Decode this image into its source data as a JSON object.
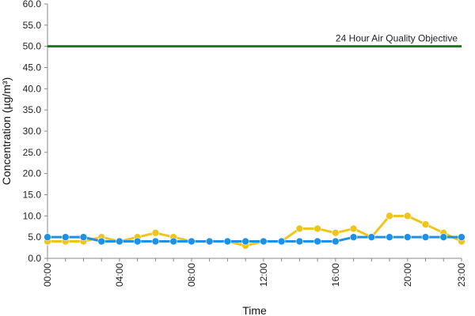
{
  "chart_data": {
    "type": "line",
    "title": "",
    "xlabel": "Time",
    "ylabel": "Concentration (µg/m³)",
    "ylim": [
      0,
      60
    ],
    "yticks": [
      "0.0",
      "5.0",
      "10.0",
      "15.0",
      "20.0",
      "25.0",
      "30.0",
      "35.0",
      "40.0",
      "45.0",
      "50.0",
      "55.0",
      "60.0"
    ],
    "ytick_values": [
      0,
      5,
      10,
      15,
      20,
      25,
      30,
      35,
      40,
      45,
      50,
      55,
      60
    ],
    "categories": [
      "00:00",
      "01:00",
      "02:00",
      "03:00",
      "04:00",
      "05:00",
      "06:00",
      "07:00",
      "08:00",
      "09:00",
      "10:00",
      "11:00",
      "12:00",
      "13:00",
      "14:00",
      "15:00",
      "16:00",
      "17:00",
      "18:00",
      "19:00",
      "20:00",
      "21:00",
      "22:00",
      "23:00"
    ],
    "xtick_labels": [
      "00:00",
      "04:00",
      "08:00",
      "12:00",
      "16:00",
      "20:00",
      "23:00"
    ],
    "xtick_indices": [
      0,
      4,
      8,
      12,
      16,
      20,
      23
    ],
    "grid": false,
    "legend": "none",
    "reference_line": {
      "label": "24 Hour Air Quality Objective",
      "value": 50,
      "color": "#1a7a1a"
    },
    "series": [
      {
        "color": "#f0c419",
        "values": [
          4,
          4,
          4,
          5,
          4,
          5,
          6,
          5,
          4,
          4,
          4,
          3,
          4,
          4,
          7,
          7,
          6,
          7,
          5,
          10,
          10,
          8,
          6,
          4
        ]
      },
      {
        "color": "#1e90e6",
        "values": [
          5,
          5,
          5,
          4,
          4,
          4,
          4,
          4,
          4,
          4,
          4,
          4,
          4,
          4,
          4,
          4,
          4,
          5,
          5,
          5,
          5,
          5,
          5,
          5
        ]
      }
    ]
  }
}
